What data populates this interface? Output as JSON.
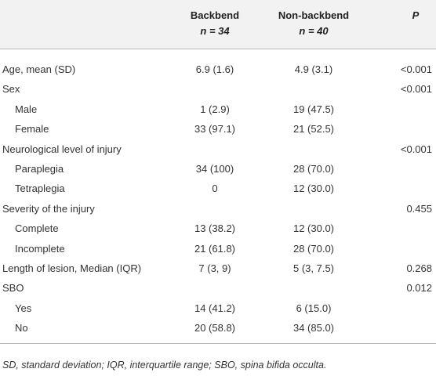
{
  "header": {
    "backbend": {
      "title": "Backbend",
      "n": "n = 34"
    },
    "non_backbend": {
      "title": "Non-backbend",
      "n": "n = 40"
    },
    "p": "P"
  },
  "rows": [
    {
      "label": "Age, mean (SD)",
      "backbend": "6.9 (1.6)",
      "non_backbend": "4.9 (3.1)",
      "p": "<0.001"
    },
    {
      "label": "Sex",
      "p": "<0.001",
      "items": [
        {
          "label": "Male",
          "backbend": "1 (2.9)",
          "non_backbend": "19 (47.5)"
        },
        {
          "label": "Female",
          "backbend": "33 (97.1)",
          "non_backbend": "21 (52.5)"
        }
      ]
    },
    {
      "label": "Neurological level of injury",
      "p": "<0.001",
      "items": [
        {
          "label": "Paraplegia",
          "backbend": "34 (100)",
          "non_backbend": "28 (70.0)"
        },
        {
          "label": "Tetraplegia",
          "backbend": "0",
          "non_backbend": "12 (30.0)"
        }
      ]
    },
    {
      "label": "Severity of the injury",
      "p": "0.455",
      "items": [
        {
          "label": "Complete",
          "backbend": "13 (38.2)",
          "non_backbend": "12 (30.0)"
        },
        {
          "label": "Incomplete",
          "backbend": "21 (61.8)",
          "non_backbend": "28 (70.0)"
        }
      ]
    },
    {
      "label": "Length of lesion, Median (IQR)",
      "backbend": "7 (3, 9)",
      "non_backbend": "5 (3, 7.5)",
      "p": "0.268"
    },
    {
      "label": "SBO",
      "p": "0.012",
      "items": [
        {
          "label": "Yes",
          "backbend": "14 (41.2)",
          "non_backbend": "6 (15.0)"
        },
        {
          "label": "No",
          "backbend": "20 (58.8)",
          "non_backbend": "34 (85.0)"
        }
      ]
    }
  ],
  "footnote": "SD, standard deviation; IQR, interquartile range; SBO, spina bifida occulta."
}
